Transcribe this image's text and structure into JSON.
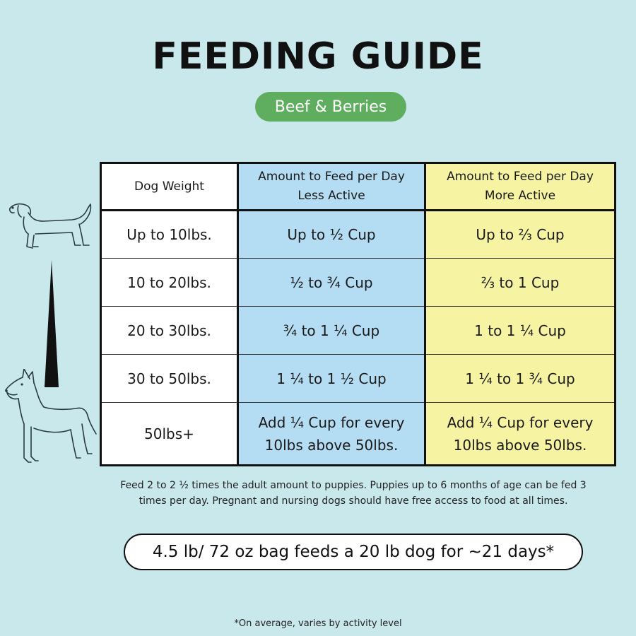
{
  "title": "FEEDING GUIDE",
  "badge": "Beef & Berries",
  "table": {
    "headers": {
      "weight": "Dog Weight",
      "less_active": [
        "Amount to Feed per Day",
        "Less Active"
      ],
      "more_active": [
        "Amount to Feed per Day",
        "More Active"
      ]
    },
    "rows": [
      {
        "weight": "Up to 10lbs.",
        "less": [
          "Up to ½ Cup"
        ],
        "more": [
          "Up to ⅔ Cup"
        ]
      },
      {
        "weight": "10 to 20lbs.",
        "less": [
          "½ to ¾ Cup"
        ],
        "more": [
          "⅔ to 1 Cup"
        ]
      },
      {
        "weight": "20 to 30lbs.",
        "less": [
          "¾ to 1 ¼ Cup"
        ],
        "more": [
          "1 to 1 ¼ Cup"
        ]
      },
      {
        "weight": "30 to 50lbs.",
        "less": [
          "1 ¼ to 1 ½ Cup"
        ],
        "more": [
          "1 ¼ to 1 ¾ Cup"
        ]
      },
      {
        "weight": "50lbs+",
        "less": [
          "Add ¼ Cup for every",
          "10lbs above 50lbs."
        ],
        "more": [
          "Add ¼ Cup for every",
          "10lbs above 50lbs."
        ]
      }
    ]
  },
  "note": [
    "Feed 2 to 2 ½ times the adult amount to puppies. Puppies up to 6 months of age can be fed 3",
    "times per day. Pregnant and nursing dogs should have free access to food at all times."
  ],
  "bag_info": "4.5 lb/ 72 oz bag feeds a 20 lb dog for ~21 days*",
  "footnote": "*On average, varies by activity level",
  "icons": [
    "small-dog-icon",
    "size-scale-wedge-icon",
    "large-dog-icon"
  ],
  "colors": {
    "background": "#c8e8ec",
    "badge": "#5fad5e",
    "less_active": "#b4dcf2",
    "more_active": "#f6f3a2"
  }
}
